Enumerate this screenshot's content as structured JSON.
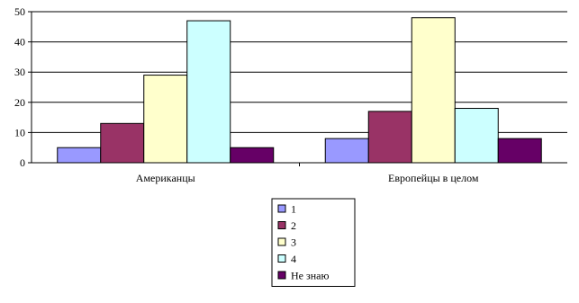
{
  "chart_data": {
    "type": "bar",
    "categories": [
      "Американцы",
      "Европейцы в целом"
    ],
    "series": [
      {
        "name": "1",
        "color": "#9999ff",
        "values": [
          5,
          8
        ]
      },
      {
        "name": "2",
        "color": "#993366",
        "values": [
          13,
          17
        ]
      },
      {
        "name": "3",
        "color": "#ffffcc",
        "values": [
          29,
          48
        ]
      },
      {
        "name": "4",
        "color": "#ccffff",
        "values": [
          47,
          18
        ]
      },
      {
        "name": "Не знаю",
        "color": "#660066",
        "values": [
          5,
          8
        ]
      }
    ],
    "yticks": [
      "0",
      "10",
      "20",
      "30",
      "40",
      "50"
    ],
    "ylim": [
      0,
      50
    ],
    "grid": true,
    "legend_position": "bottom-center",
    "title": "",
    "xlabel": "",
    "ylabel": ""
  }
}
